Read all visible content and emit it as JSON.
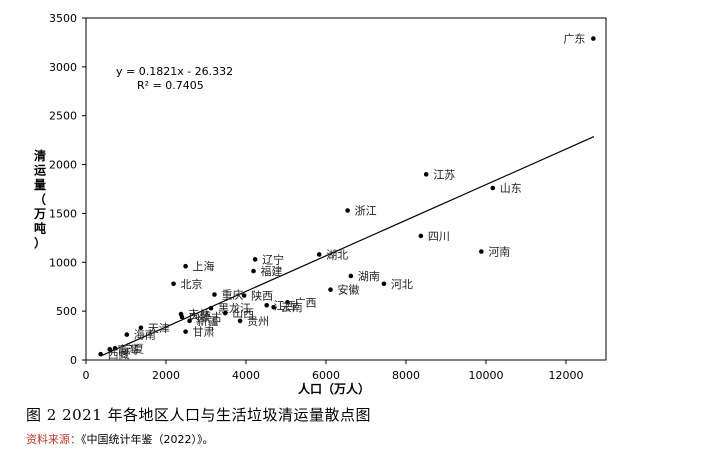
{
  "chart_data": {
    "type": "scatter",
    "xlabel": "人口（万人）",
    "ylabel": "清运量（万吨）",
    "xlim": [
      0,
      13000
    ],
    "ylim": [
      0,
      3500
    ],
    "xticks": [
      0,
      2000,
      4000,
      6000,
      8000,
      10000,
      12000
    ],
    "yticks": [
      0,
      500,
      1000,
      1500,
      2000,
      2500,
      3000,
      3500
    ],
    "grid": false,
    "annotations": [
      "y = 0.1821x - 26.332",
      "R² = 0.7405"
    ],
    "trendline": {
      "slope": 0.1821,
      "intercept": -26.332,
      "x_range": [
        380,
        12700
      ]
    },
    "points": [
      {
        "label": "广东",
        "x": 12684,
        "y": 3290
      },
      {
        "label": "江苏",
        "x": 8505,
        "y": 1900
      },
      {
        "label": "山东",
        "x": 10170,
        "y": 1760
      },
      {
        "label": "浙江",
        "x": 6540,
        "y": 1530
      },
      {
        "label": "四川",
        "x": 8372,
        "y": 1270
      },
      {
        "label": "河南",
        "x": 9883,
        "y": 1110
      },
      {
        "label": "湖北",
        "x": 5830,
        "y": 1080
      },
      {
        "label": "辽宁",
        "x": 4229,
        "y": 1030
      },
      {
        "label": "福建",
        "x": 4187,
        "y": 910
      },
      {
        "label": "上海",
        "x": 2489,
        "y": 960
      },
      {
        "label": "北京",
        "x": 2189,
        "y": 780
      },
      {
        "label": "湖南",
        "x": 6622,
        "y": 860
      },
      {
        "label": "河北",
        "x": 7448,
        "y": 780
      },
      {
        "label": "安徽",
        "x": 6113,
        "y": 720
      },
      {
        "label": "重庆",
        "x": 3212,
        "y": 670
      },
      {
        "label": "陕西",
        "x": 3954,
        "y": 660
      },
      {
        "label": "广西",
        "x": 5037,
        "y": 590
      },
      {
        "label": "江西",
        "x": 4517,
        "y": 560
      },
      {
        "label": "云南",
        "x": 4690,
        "y": 540
      },
      {
        "label": "黑龙江",
        "x": 3125,
        "y": 530
      },
      {
        "label": "吉林",
        "x": 2375,
        "y": 470
      },
      {
        "label": "山西",
        "x": 3480,
        "y": 480
      },
      {
        "label": "内蒙古",
        "x": 2400,
        "y": 440
      },
      {
        "label": "新疆",
        "x": 2589,
        "y": 400
      },
      {
        "label": "天津",
        "x": 1373,
        "y": 330
      },
      {
        "label": "甘肃",
        "x": 2490,
        "y": 290
      },
      {
        "label": "贵州",
        "x": 3852,
        "y": 400
      },
      {
        "label": "海南",
        "x": 1020,
        "y": 260
      },
      {
        "label": "宁夏",
        "x": 725,
        "y": 120
      },
      {
        "label": "青海",
        "x": 594,
        "y": 110
      },
      {
        "label": "西藏",
        "x": 366,
        "y": 60
      }
    ]
  },
  "caption": "图 2 2021 年各地区人口与生活垃圾清运量散点图",
  "source": {
    "label": "资料来源：",
    "text": "《中国统计年鉴（2022）》。"
  }
}
